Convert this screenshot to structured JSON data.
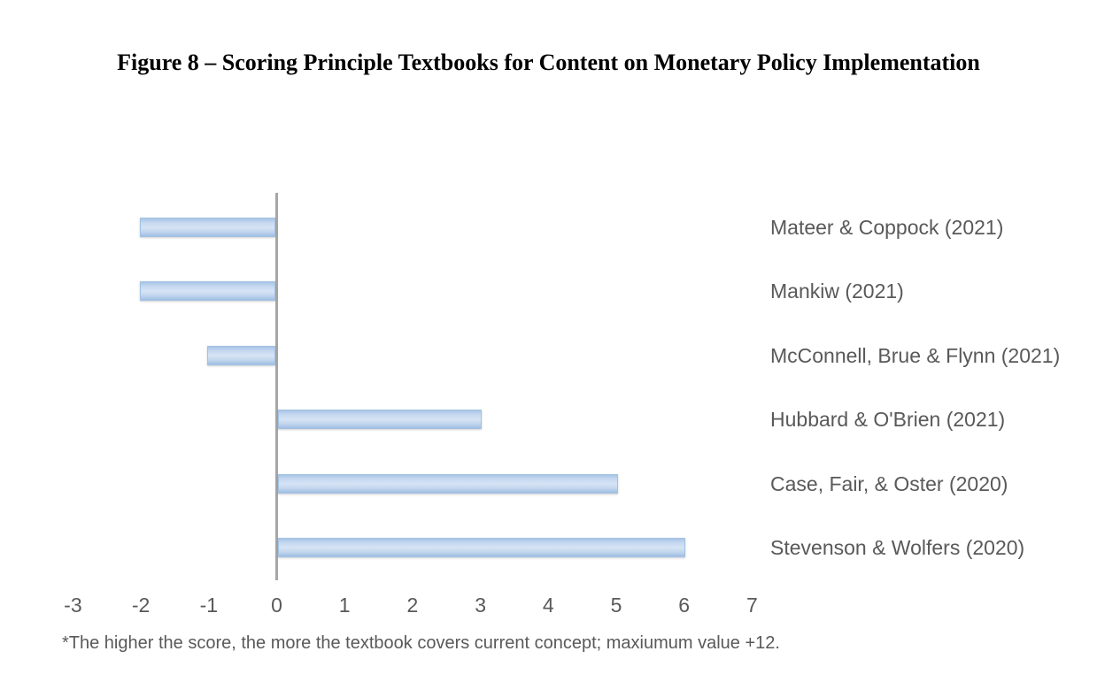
{
  "figure": {
    "title": "Figure 8 – Scoring Principle Textbooks for Content on Monetary Policy Implementation",
    "footnote": "*The higher the score, the more the textbook covers current concept; maxiumum value +12."
  },
  "colors": {
    "title_text": "#000000",
    "label_text": "#595959",
    "axis_line": "#a6a6a6",
    "bar_fill_light": "#d6e3f5",
    "bar_fill_dark": "#a8c5e6",
    "bar_border": "#a3c2e4"
  },
  "chart_data": {
    "type": "bar",
    "orientation": "horizontal",
    "title": "Figure 8 – Scoring Principle Textbooks for Content on Monetary Policy Implementation",
    "categories": [
      "Mateer & Coppock (2021)",
      "Mankiw (2021)",
      "McConnell, Brue & Flynn (2021)",
      "Hubbard & O'Brien (2021)",
      "Case, Fair, & Oster (2020)",
      "Stevenson & Wolfers (2020)"
    ],
    "values": [
      -2,
      -2,
      -1,
      3,
      5,
      6
    ],
    "x_ticks": [
      -3,
      -2,
      -1,
      0,
      1,
      2,
      3,
      4,
      5,
      6,
      7
    ],
    "xlim": [
      -3,
      7
    ],
    "xlabel": "",
    "ylabel": "",
    "grid": false,
    "legend": false,
    "category_label_position": "right",
    "footnote": "*The higher the score, the more the textbook covers current concept; maxiumum value +12."
  }
}
